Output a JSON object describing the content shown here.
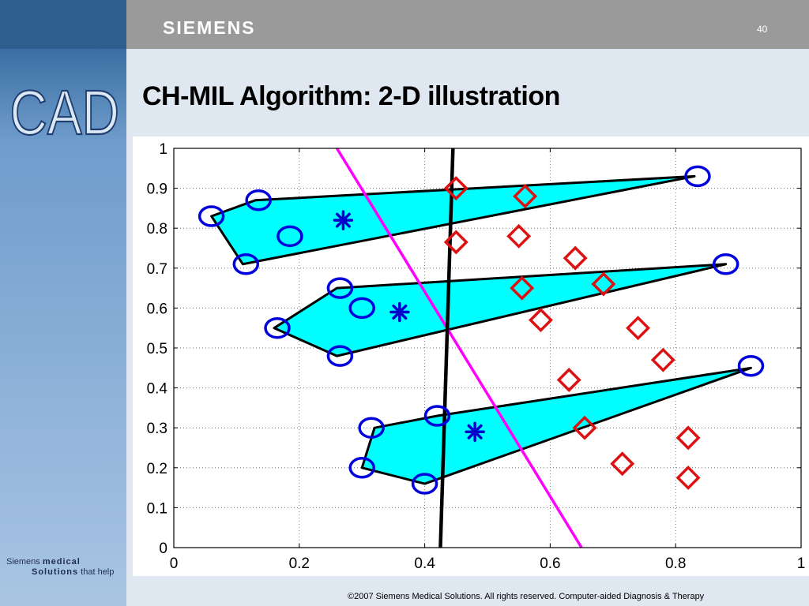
{
  "header": {
    "brand": "SIEMENS",
    "page_number": "40"
  },
  "sidebar": {
    "logo_text": "CAD",
    "company_line1_a": "Siemens",
    "company_line1_b": "medical",
    "company_line2_a": "Solutions",
    "company_line2_b": "that help"
  },
  "slide": {
    "title": "CH-MIL Algorithm: 2-D illustration"
  },
  "footer": {
    "copyright": "©2007 Siemens Medical Solutions. All rights reserved. Computer-aided Diagnosis & Therapy"
  },
  "colors": {
    "hull_fill": "#00ffff",
    "circle": "#0000dd",
    "diamond": "#dd1111",
    "star": "#0000cc",
    "magenta_line": "#ff00ff",
    "black_line": "#000000"
  },
  "chart_data": {
    "type": "scatter",
    "xlim": [
      0,
      1
    ],
    "ylim": [
      0,
      1
    ],
    "x_ticks": [
      "0",
      "0.2",
      "0.4",
      "0.6",
      "0.8",
      "1"
    ],
    "y_ticks": [
      "0",
      "0.1",
      "0.2",
      "0.3",
      "0.4",
      "0.5",
      "0.6",
      "0.7",
      "0.8",
      "0.9",
      "1"
    ],
    "grid": true,
    "hulls": [
      [
        [
          0.06,
          0.83
        ],
        [
          0.13,
          0.87
        ],
        [
          0.83,
          0.93
        ],
        [
          0.11,
          0.71
        ]
      ],
      [
        [
          0.16,
          0.55
        ],
        [
          0.26,
          0.65
        ],
        [
          0.88,
          0.71
        ],
        [
          0.26,
          0.48
        ]
      ],
      [
        [
          0.3,
          0.2
        ],
        [
          0.32,
          0.3
        ],
        [
          0.42,
          0.33
        ],
        [
          0.92,
          0.45
        ],
        [
          0.4,
          0.16
        ]
      ]
    ],
    "circles": [
      [
        0.06,
        0.83
      ],
      [
        0.135,
        0.87
      ],
      [
        0.185,
        0.78
      ],
      [
        0.115,
        0.71
      ],
      [
        0.835,
        0.93
      ],
      [
        0.265,
        0.65
      ],
      [
        0.3,
        0.6
      ],
      [
        0.165,
        0.55
      ],
      [
        0.265,
        0.48
      ],
      [
        0.88,
        0.71
      ],
      [
        0.315,
        0.3
      ],
      [
        0.42,
        0.33
      ],
      [
        0.3,
        0.2
      ],
      [
        0.4,
        0.16
      ],
      [
        0.92,
        0.455
      ]
    ],
    "stars": [
      [
        0.27,
        0.82
      ],
      [
        0.36,
        0.59
      ],
      [
        0.48,
        0.29
      ]
    ],
    "diamonds": [
      [
        0.45,
        0.9
      ],
      [
        0.56,
        0.88
      ],
      [
        0.45,
        0.765
      ],
      [
        0.55,
        0.78
      ],
      [
        0.64,
        0.725
      ],
      [
        0.555,
        0.65
      ],
      [
        0.685,
        0.66
      ],
      [
        0.585,
        0.57
      ],
      [
        0.74,
        0.55
      ],
      [
        0.78,
        0.47
      ],
      [
        0.63,
        0.42
      ],
      [
        0.655,
        0.3
      ],
      [
        0.82,
        0.275
      ],
      [
        0.715,
        0.21
      ],
      [
        0.82,
        0.175
      ]
    ],
    "lines": [
      {
        "color": "magenta",
        "points": [
          [
            0.26,
            1.0
          ],
          [
            0.65,
            0.0
          ]
        ]
      },
      {
        "color": "black",
        "points": [
          [
            0.445,
            1.0
          ],
          [
            0.425,
            0.0
          ]
        ]
      }
    ]
  }
}
